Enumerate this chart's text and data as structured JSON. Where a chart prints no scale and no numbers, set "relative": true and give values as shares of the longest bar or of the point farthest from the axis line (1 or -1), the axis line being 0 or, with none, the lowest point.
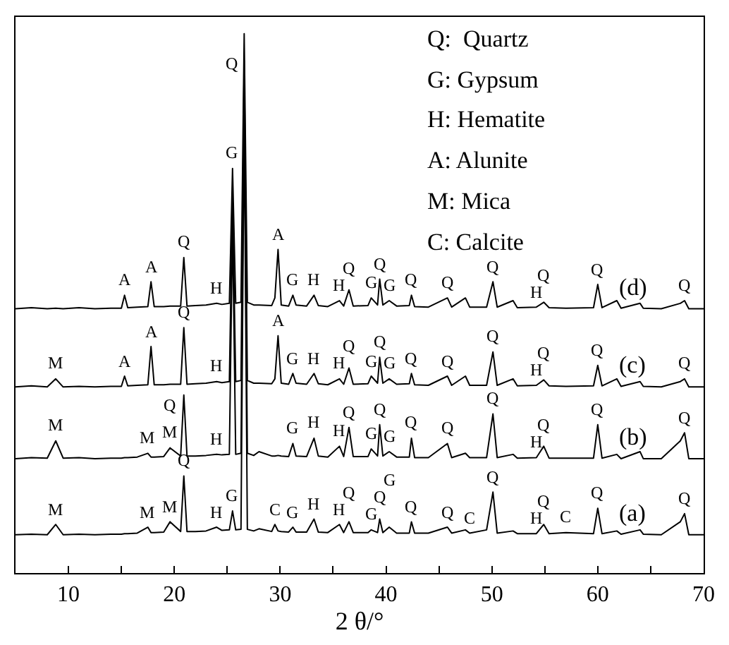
{
  "chart_data": {
    "type": "line",
    "relative": true,
    "xlabel": "2 θ/°",
    "legend": false,
    "xlim": [
      5,
      70
    ],
    "xticks": [
      {
        "value": 5,
        "label": null
      },
      10,
      {
        "value": 15,
        "label": null
      },
      20,
      {
        "value": 25,
        "label": null
      },
      30,
      {
        "value": 35,
        "label": null
      },
      40,
      {
        "value": 45,
        "label": null
      },
      50,
      {
        "value": 55,
        "label": null
      },
      60,
      {
        "value": 65,
        "label": null
      },
      70
    ],
    "x": [
      5,
      6.5,
      8,
      8.8,
      9.5,
      11,
      12.5,
      14,
      15,
      15.3,
      15.6,
      16.5,
      17.5,
      17.8,
      18.1,
      19,
      19.6,
      20.6,
      20.9,
      21.2,
      22,
      23,
      24,
      24.5,
      25.2,
      25.5,
      25.8,
      26.3,
      26.6,
      26.9,
      27.5,
      28,
      29.2,
      29.5,
      29.8,
      30.1,
      30.8,
      31.2,
      31.5,
      32.5,
      33.2,
      33.6,
      34.5,
      35.6,
      36,
      36.5,
      36.9,
      38.3,
      38.6,
      39.2,
      39.4,
      39.7,
      40.3,
      41,
      42.2,
      42.4,
      42.7,
      44,
      45.8,
      46.2,
      47.5,
      47.9,
      49.5,
      50.1,
      50.5,
      52,
      52.4,
      54.2,
      54.9,
      55.4,
      57,
      59.6,
      60,
      60.4,
      61.8,
      62.2,
      64,
      64.3,
      66,
      67.8,
      68.2,
      68.6,
      70
    ],
    "series": [
      {
        "name": "(d)",
        "color": "#000000",
        "values": [
          0.49,
          0.492,
          0.49,
          0.491,
          0.49,
          0.492,
          0.49,
          0.491,
          0.491,
          0.515,
          0.492,
          0.493,
          0.494,
          0.54,
          0.494,
          0.494,
          0.495,
          0.495,
          0.585,
          0.495,
          0.496,
          0.497,
          0.5,
          0.498,
          0.5,
          0.75,
          0.5,
          0.502,
          1.0,
          0.502,
          0.497,
          0.497,
          0.496,
          0.51,
          0.6,
          0.497,
          0.495,
          0.515,
          0.497,
          0.495,
          0.515,
          0.496,
          0.494,
          0.505,
          0.495,
          0.525,
          0.495,
          0.496,
          0.51,
          0.497,
          0.545,
          0.497,
          0.505,
          0.495,
          0.496,
          0.515,
          0.494,
          0.493,
          0.51,
          0.493,
          0.51,
          0.493,
          0.493,
          0.54,
          0.493,
          0.505,
          0.492,
          0.493,
          0.502,
          0.492,
          0.491,
          0.492,
          0.535,
          0.492,
          0.505,
          0.491,
          0.5,
          0.491,
          0.49,
          0.5,
          0.505,
          0.49,
          0.49
        ]
      },
      {
        "name": "(c)",
        "color": "#000000",
        "values": [
          0.345,
          0.347,
          0.345,
          0.36,
          0.345,
          0.346,
          0.345,
          0.346,
          0.346,
          0.365,
          0.347,
          0.348,
          0.349,
          0.42,
          0.349,
          0.349,
          0.35,
          0.35,
          0.455,
          0.35,
          0.351,
          0.352,
          0.355,
          0.353,
          0.355,
          0.7,
          0.355,
          0.357,
          0.95,
          0.357,
          0.352,
          0.352,
          0.351,
          0.36,
          0.44,
          0.352,
          0.35,
          0.37,
          0.352,
          0.35,
          0.37,
          0.351,
          0.349,
          0.36,
          0.35,
          0.38,
          0.35,
          0.351,
          0.365,
          0.352,
          0.4,
          0.352,
          0.36,
          0.35,
          0.351,
          0.37,
          0.349,
          0.348,
          0.365,
          0.348,
          0.365,
          0.348,
          0.348,
          0.41,
          0.348,
          0.36,
          0.347,
          0.348,
          0.358,
          0.347,
          0.346,
          0.347,
          0.385,
          0.347,
          0.36,
          0.346,
          0.355,
          0.346,
          0.345,
          0.355,
          0.36,
          0.345,
          0.345
        ]
      },
      {
        "name": "(b)",
        "color": "#000000",
        "values": [
          0.212,
          0.214,
          0.213,
          0.245,
          0.213,
          0.214,
          0.212,
          0.213,
          0.213,
          0.214,
          0.214,
          0.215,
          0.222,
          0.215,
          0.215,
          0.216,
          0.232,
          0.217,
          0.33,
          0.217,
          0.217,
          0.218,
          0.22,
          0.219,
          0.22,
          0.65,
          0.22,
          0.222,
          0.9,
          0.222,
          0.218,
          0.225,
          0.217,
          0.217,
          0.218,
          0.217,
          0.216,
          0.24,
          0.217,
          0.216,
          0.25,
          0.217,
          0.215,
          0.235,
          0.216,
          0.27,
          0.216,
          0.216,
          0.23,
          0.217,
          0.275,
          0.217,
          0.225,
          0.215,
          0.215,
          0.25,
          0.214,
          0.214,
          0.24,
          0.214,
          0.222,
          0.214,
          0.214,
          0.295,
          0.214,
          0.22,
          0.213,
          0.214,
          0.235,
          0.213,
          0.213,
          0.213,
          0.275,
          0.213,
          0.22,
          0.212,
          0.225,
          0.212,
          0.212,
          0.245,
          0.26,
          0.212,
          0.212
        ]
      },
      {
        "name": "(a)",
        "color": "#000000",
        "values": [
          0.071,
          0.072,
          0.071,
          0.09,
          0.071,
          0.072,
          0.071,
          0.072,
          0.072,
          0.073,
          0.073,
          0.074,
          0.085,
          0.075,
          0.075,
          0.076,
          0.095,
          0.077,
          0.18,
          0.077,
          0.077,
          0.078,
          0.085,
          0.079,
          0.08,
          0.115,
          0.08,
          0.081,
          0.85,
          0.081,
          0.078,
          0.082,
          0.077,
          0.09,
          0.078,
          0.077,
          0.076,
          0.085,
          0.076,
          0.076,
          0.1,
          0.076,
          0.075,
          0.09,
          0.075,
          0.095,
          0.075,
          0.075,
          0.08,
          0.075,
          0.1,
          0.075,
          0.085,
          0.074,
          0.074,
          0.095,
          0.074,
          0.074,
          0.085,
          0.074,
          0.08,
          0.074,
          0.08,
          0.15,
          0.074,
          0.078,
          0.073,
          0.073,
          0.09,
          0.073,
          0.075,
          0.073,
          0.12,
          0.073,
          0.078,
          0.072,
          0.08,
          0.072,
          0.071,
          0.095,
          0.11,
          0.071,
          0.071
        ]
      }
    ],
    "annotations": [
      "Q:  Quartz",
      "G: Gypsum",
      "H: Hematite",
      "A: Alunite",
      "M: Mica",
      "C: Calcite",
      {
        "text": "A",
        "x": 15.3,
        "y": 0.515
      },
      {
        "text": "A",
        "x": 17.8,
        "y": 0.54
      },
      {
        "text": "Q",
        "x": 20.9,
        "y": 0.585
      },
      {
        "text": "H",
        "x": 24,
        "y": 0.5
      },
      {
        "text": "G",
        "x": 25.5,
        "y": 0.75
      },
      {
        "text": "Q",
        "x": 26.6,
        "y": 1.0
      },
      {
        "text": "A",
        "x": 29.8,
        "y": 0.6
      },
      {
        "text": "G",
        "x": 31.2,
        "y": 0.515
      },
      {
        "text": "H",
        "x": 33.2,
        "y": 0.515
      },
      {
        "text": "H",
        "x": 35.6,
        "y": 0.505
      },
      {
        "text": "Q",
        "x": 36.5,
        "y": 0.525
      },
      {
        "text": "G",
        "x": 38.6,
        "y": 0.51
      },
      {
        "text": "Q",
        "x": 39.4,
        "y": 0.545
      },
      {
        "text": "G",
        "x": 40.3,
        "y": 0.505
      },
      {
        "text": "Q",
        "x": 42.4,
        "y": 0.515
      },
      {
        "text": "Q",
        "x": 45.8,
        "y": 0.51
      },
      {
        "text": "Q",
        "x": 50.1,
        "y": 0.54
      },
      {
        "text": "H",
        "x": 54.2,
        "y": 0.493
      },
      {
        "text": "Q",
        "x": 54.9,
        "y": 0.502
      },
      {
        "text": "Q",
        "x": 60,
        "y": 0.535
      },
      {
        "text": "Q",
        "x": 68.2,
        "y": 0.505
      },
      {
        "text": "M",
        "x": 8.8,
        "y": 0.36
      },
      {
        "text": "A",
        "x": 15.3,
        "y": 0.365
      },
      {
        "text": "A",
        "x": 17.8,
        "y": 0.42
      },
      {
        "text": "Q",
        "x": 20.9,
        "y": 0.455
      },
      {
        "text": "H",
        "x": 24,
        "y": 0.355
      },
      {
        "text": "A",
        "x": 29.8,
        "y": 0.44
      },
      {
        "text": "G",
        "x": 31.2,
        "y": 0.37
      },
      {
        "text": "H",
        "x": 33.2,
        "y": 0.37
      },
      {
        "text": "H",
        "x": 35.6,
        "y": 0.36
      },
      {
        "text": "Q",
        "x": 36.5,
        "y": 0.38
      },
      {
        "text": "G",
        "x": 38.6,
        "y": 0.365
      },
      {
        "text": "Q",
        "x": 39.4,
        "y": 0.4
      },
      {
        "text": "G",
        "x": 40.3,
        "y": 0.36
      },
      {
        "text": "Q",
        "x": 42.4,
        "y": 0.37
      },
      {
        "text": "Q",
        "x": 45.8,
        "y": 0.365
      },
      {
        "text": "Q",
        "x": 50.1,
        "y": 0.41
      },
      {
        "text": "H",
        "x": 54.2,
        "y": 0.348
      },
      {
        "text": "Q",
        "x": 54.9,
        "y": 0.358
      },
      {
        "text": "Q",
        "x": 60,
        "y": 0.385
      },
      {
        "text": "Q",
        "x": 68.2,
        "y": 0.36
      },
      {
        "text": "M",
        "x": 8.8,
        "y": 0.245
      },
      {
        "text": "M",
        "x": 17.5,
        "y": 0.222
      },
      {
        "text": "M",
        "x": 19.6,
        "y": 0.232
      },
      {
        "text": "Q",
        "x": 20.9,
        "y": 0.33
      },
      {
        "text": "H",
        "x": 24,
        "y": 0.22
      },
      {
        "text": "G",
        "x": 31.2,
        "y": 0.24
      },
      {
        "text": "H",
        "x": 33.2,
        "y": 0.25
      },
      {
        "text": "H",
        "x": 35.6,
        "y": 0.235
      },
      {
        "text": "Q",
        "x": 36.5,
        "y": 0.27
      },
      {
        "text": "G",
        "x": 38.6,
        "y": 0.23
      },
      {
        "text": "Q",
        "x": 39.4,
        "y": 0.275
      },
      {
        "text": "G",
        "x": 40.3,
        "y": 0.225
      },
      {
        "text": "Q",
        "x": 42.4,
        "y": 0.25
      },
      {
        "text": "Q",
        "x": 45.8,
        "y": 0.24
      },
      {
        "text": "Q",
        "x": 50.1,
        "y": 0.295
      },
      {
        "text": "H",
        "x": 54.2,
        "y": 0.214
      },
      {
        "text": "Q",
        "x": 54.9,
        "y": 0.235
      },
      {
        "text": "Q",
        "x": 60,
        "y": 0.275
      },
      {
        "text": "Q",
        "x": 68.2,
        "y": 0.26
      },
      {
        "text": "M",
        "x": 8.8,
        "y": 0.09
      },
      {
        "text": "M",
        "x": 17.5,
        "y": 0.085
      },
      {
        "text": "M",
        "x": 19.6,
        "y": 0.095
      },
      {
        "text": "Q",
        "x": 20.9,
        "y": 0.18
      },
      {
        "text": "H",
        "x": 24,
        "y": 0.085
      },
      {
        "text": "G",
        "x": 25.5,
        "y": 0.115
      },
      {
        "text": "C",
        "x": 29.5,
        "y": 0.09
      },
      {
        "text": "G",
        "x": 31.2,
        "y": 0.085
      },
      {
        "text": "H",
        "x": 33.2,
        "y": 0.1
      },
      {
        "text": "H",
        "x": 35.6,
        "y": 0.09
      },
      {
        "text": "Q",
        "x": 36.5,
        "y": 0.095
      },
      {
        "text": "G",
        "x": 38.6,
        "y": 0.08
      },
      {
        "text": "Q",
        "x": 39.4,
        "y": 0.1
      },
      {
        "text": "G",
        "x": 40.3,
        "y": 0.085
      },
      {
        "text": "Q",
        "x": 42.4,
        "y": 0.095
      },
      {
        "text": "Q",
        "x": 45.8,
        "y": 0.085
      },
      {
        "text": "C",
        "x": 47.9,
        "y": 0.074
      },
      {
        "text": "Q",
        "x": 50.1,
        "y": 0.15
      },
      {
        "text": "H",
        "x": 54.2,
        "y": 0.073
      },
      {
        "text": "Q",
        "x": 54.9,
        "y": 0.09
      },
      {
        "text": "C",
        "x": 57,
        "y": 0.075
      },
      {
        "text": "Q",
        "x": 60,
        "y": 0.12
      },
      {
        "text": "Q",
        "x": 68.2,
        "y": 0.11
      }
    ]
  }
}
